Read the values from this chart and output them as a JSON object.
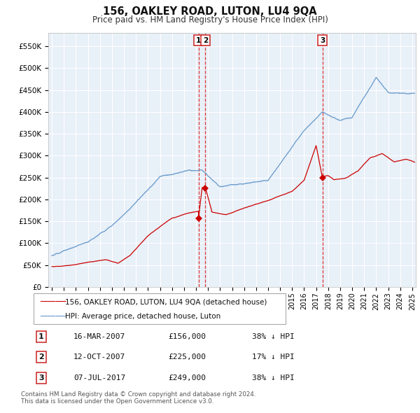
{
  "title": "156, OAKLEY ROAD, LUTON, LU4 9QA",
  "subtitle": "Price paid vs. HM Land Registry's House Price Index (HPI)",
  "footer1": "Contains HM Land Registry data © Crown copyright and database right 2024.",
  "footer2": "This data is licensed under the Open Government Licence v3.0.",
  "legend_red": "156, OAKLEY ROAD, LUTON, LU4 9QA (detached house)",
  "legend_blue": "HPI: Average price, detached house, Luton",
  "transactions": [
    {
      "num": "1",
      "date": "16-MAR-2007",
      "price": "£156,000",
      "pct": "38% ↓ HPI",
      "x_year": 2007.21
    },
    {
      "num": "2",
      "date": "12-OCT-2007",
      "price": "£225,000",
      "pct": "17% ↓ HPI",
      "x_year": 2007.78
    },
    {
      "num": "3",
      "date": "07-JUL-2017",
      "price": "£249,000",
      "pct": "38% ↓ HPI",
      "x_year": 2017.52
    }
  ],
  "red_color": "#cc0000",
  "blue_color": "#6699cc",
  "bg_chart": "#e8f0f8",
  "bg_figure": "#ffffff",
  "grid_color": "#ffffff",
  "vline_color": "#dd2222",
  "yticks": [
    0,
    50000,
    100000,
    150000,
    200000,
    250000,
    300000,
    350000,
    400000,
    450000,
    500000,
    550000
  ],
  "xlim_start": 1994.7,
  "xlim_end": 2025.3,
  "ylim_top": 580000
}
